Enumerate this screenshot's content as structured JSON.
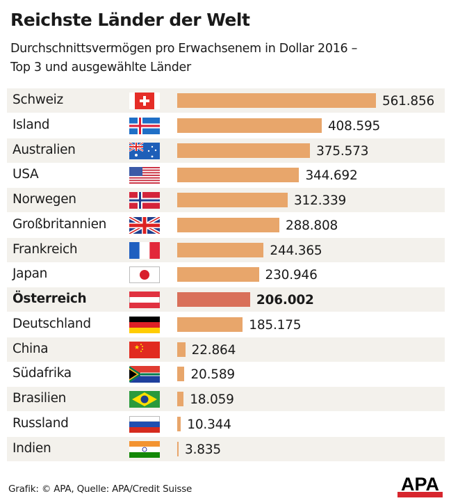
{
  "title": "Reichste Länder der Welt",
  "subtitle_line1": "Durchschnittsvermögen pro Erwachsenem in Dollar 2016 –",
  "subtitle_line2": "Top 3 und ausgewählte Länder",
  "footer": "Grafik: © APA, Quelle: APA/Credit Suisse",
  "logo_text": "APA",
  "colors": {
    "bar": "#e8a66b",
    "highlight": "#d9705a",
    "row_shade": "#f3f1ec",
    "logo_red": "#d7262e"
  },
  "chart_data": {
    "type": "bar",
    "orientation": "horizontal",
    "categories": [
      "Schweiz",
      "Island",
      "Australien",
      "USA",
      "Norwegen",
      "Großbritannien",
      "Frankreich",
      "Japan",
      "Österreich",
      "Deutschland",
      "China",
      "Südafrika",
      "Brasilien",
      "Russland",
      "Indien"
    ],
    "values": [
      561856,
      408595,
      375573,
      344692,
      312339,
      288808,
      244365,
      230946,
      206002,
      185175,
      22864,
      20589,
      18059,
      10344,
      3835
    ],
    "value_labels": [
      "561.856",
      "408.595",
      "375.573",
      "344.692",
      "312.339",
      "288.808",
      "244.365",
      "230.946",
      "206.002",
      "185.175",
      "22.864",
      "20.589",
      "18.059",
      "10.344",
      "3.835"
    ],
    "flags": [
      "ch",
      "is",
      "au",
      "us",
      "no",
      "gb",
      "fr",
      "jp",
      "at",
      "de",
      "cn",
      "za",
      "br",
      "ru",
      "in"
    ],
    "highlight": "Österreich",
    "xlim": [
      0,
      561856
    ]
  }
}
